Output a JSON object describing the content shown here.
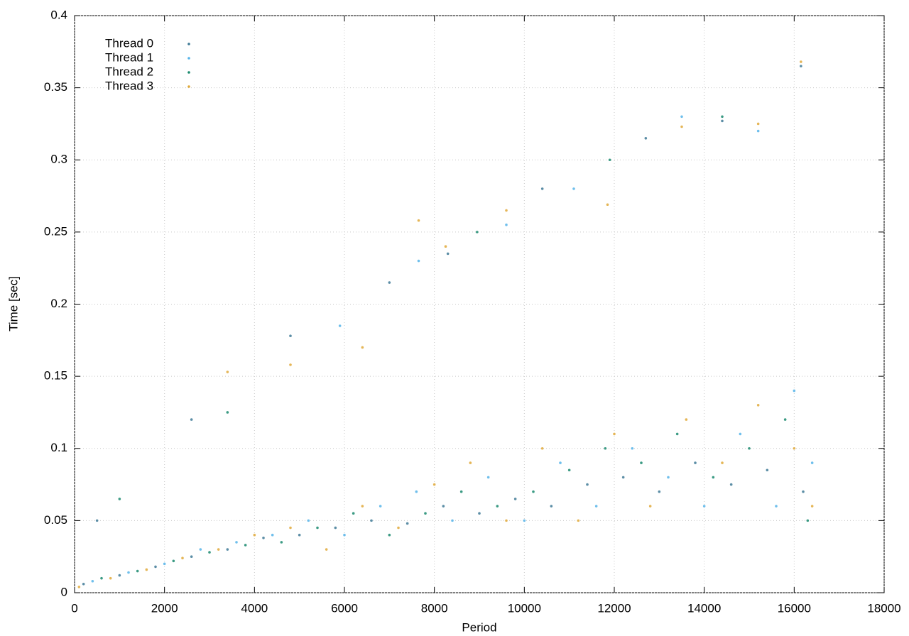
{
  "chart_data": {
    "type": "scatter",
    "xlabel": "Period",
    "ylabel": "Time [sec]",
    "xlim": [
      0,
      18000
    ],
    "ylim": [
      0,
      0.4
    ],
    "xticks": [
      0,
      2000,
      4000,
      6000,
      8000,
      10000,
      12000,
      14000,
      16000,
      18000
    ],
    "yticks": [
      0,
      0.05,
      0.1,
      0.15,
      0.2,
      0.25,
      0.3,
      0.35,
      0.4
    ],
    "grid": true,
    "legend": "upper-left",
    "series": [
      {
        "name": "Thread 0",
        "color": "#3f7a96",
        "x": [
          200,
          1000,
          1800,
          2600,
          3400,
          4200,
          5000,
          5800,
          6600,
          7400,
          8200,
          9000,
          9800,
          10600,
          11400,
          12200,
          13000,
          13800,
          14600,
          15400,
          16200,
          500,
          2600,
          4800,
          7000,
          8300,
          10400,
          12700,
          14400,
          16150
        ],
        "values": [
          0.006,
          0.012,
          0.018,
          0.025,
          0.03,
          0.038,
          0.04,
          0.045,
          0.05,
          0.048,
          0.06,
          0.055,
          0.065,
          0.06,
          0.075,
          0.08,
          0.07,
          0.09,
          0.075,
          0.085,
          0.07,
          0.05,
          0.12,
          0.178,
          0.215,
          0.235,
          0.28,
          0.315,
          0.327,
          0.365
        ]
      },
      {
        "name": "Thread 1",
        "color": "#56b4e9",
        "x": [
          400,
          1200,
          2000,
          2800,
          3600,
          4400,
          5200,
          6000,
          6800,
          7600,
          8400,
          9200,
          10000,
          10800,
          11600,
          12400,
          13200,
          14000,
          14800,
          15600,
          16000,
          16400,
          5900,
          7650,
          9600,
          11100,
          13500,
          15200
        ],
        "values": [
          0.008,
          0.014,
          0.02,
          0.03,
          0.035,
          0.04,
          0.05,
          0.04,
          0.06,
          0.07,
          0.05,
          0.08,
          0.05,
          0.09,
          0.06,
          0.1,
          0.08,
          0.06,
          0.11,
          0.06,
          0.14,
          0.09,
          0.185,
          0.23,
          0.255,
          0.28,
          0.33,
          0.32
        ]
      },
      {
        "name": "Thread 2",
        "color": "#1a8a6e",
        "x": [
          600,
          1400,
          2200,
          3000,
          3800,
          4600,
          5400,
          6200,
          7000,
          7800,
          8600,
          9400,
          10200,
          11000,
          11800,
          12600,
          13400,
          14200,
          15000,
          15800,
          16300,
          1000,
          3400,
          8950,
          11900,
          14400
        ],
        "values": [
          0.01,
          0.015,
          0.022,
          0.028,
          0.033,
          0.035,
          0.045,
          0.055,
          0.04,
          0.055,
          0.07,
          0.06,
          0.07,
          0.085,
          0.1,
          0.09,
          0.11,
          0.08,
          0.1,
          0.12,
          0.05,
          0.065,
          0.125,
          0.25,
          0.3,
          0.33
        ]
      },
      {
        "name": "Thread 3",
        "color": "#e0a93a",
        "x": [
          100,
          800,
          1600,
          2400,
          3200,
          4000,
          4800,
          5600,
          6400,
          7200,
          8000,
          8800,
          9600,
          10400,
          11200,
          12000,
          12800,
          13600,
          14400,
          15200,
          16000,
          16400,
          3400,
          4800,
          6400,
          7650,
          9600,
          11850,
          13500,
          15200,
          16150,
          8250
        ],
        "values": [
          0.004,
          0.01,
          0.016,
          0.024,
          0.03,
          0.04,
          0.045,
          0.03,
          0.06,
          0.045,
          0.075,
          0.09,
          0.05,
          0.1,
          0.05,
          0.11,
          0.06,
          0.12,
          0.09,
          0.13,
          0.1,
          0.06,
          0.153,
          0.158,
          0.17,
          0.258,
          0.265,
          0.269,
          0.323,
          0.325,
          0.368,
          0.24
        ]
      }
    ]
  }
}
